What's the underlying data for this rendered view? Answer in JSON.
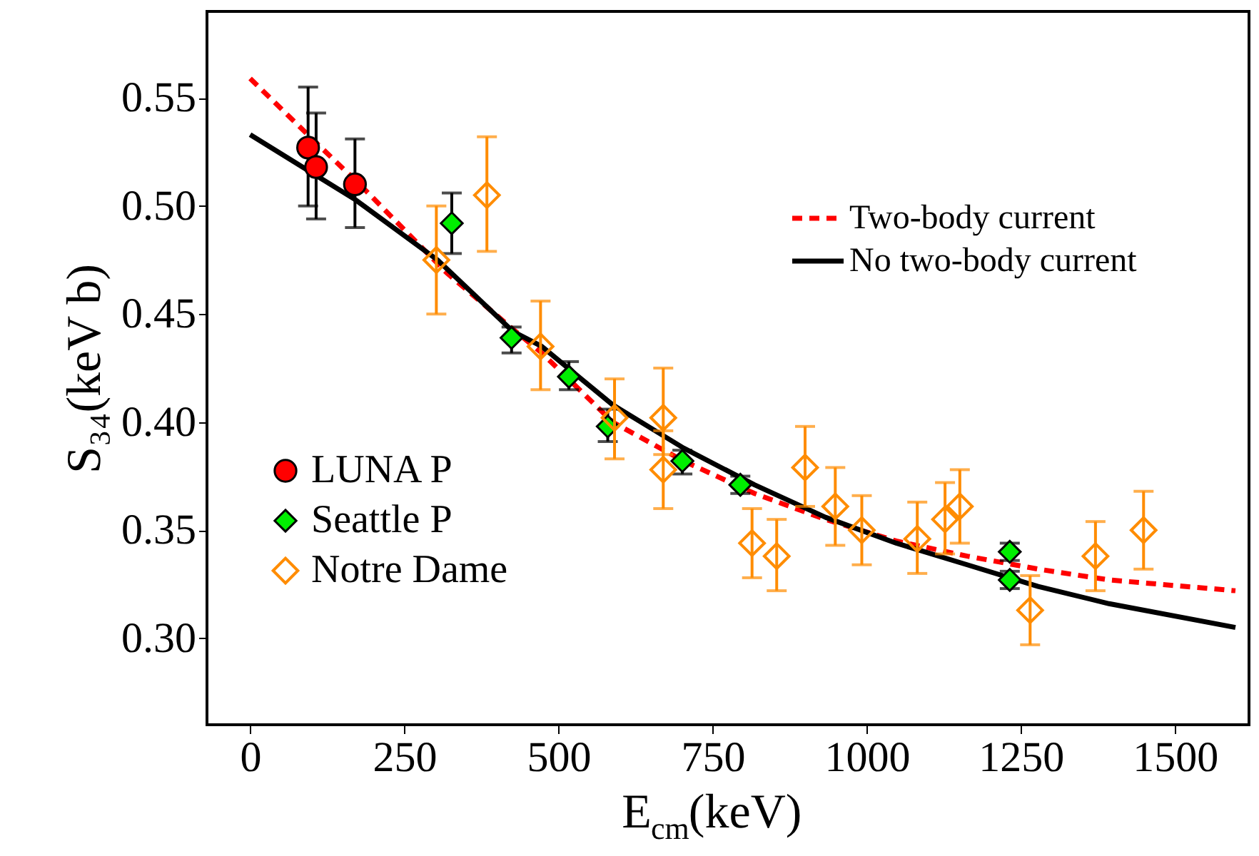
{
  "chart_data": {
    "type": "scatter",
    "xlabel": "E$_{cm}$(keV)",
    "ylabel": "S₃₄(keV b)",
    "xlim": [
      -70,
      1620
    ],
    "ylim": [
      0.26,
      0.59
    ],
    "xticks": [
      0,
      250,
      500,
      750,
      1000,
      1250,
      1500
    ],
    "yticks": [
      {
        "value": 0.3,
        "label": "0.30"
      },
      0.35,
      {
        "value": 0.4,
        "label": "0.40"
      },
      0.45,
      {
        "value": 0.5,
        "label": "0.50"
      },
      0.55
    ],
    "grid": false,
    "legend": "bottom left",
    "series": [
      {
        "name": "Two-body current",
        "type": "line",
        "color": "#ff0000",
        "line_style": "dashed",
        "x": [
          0,
          97,
          181,
          319,
          426,
          473,
          588,
          703,
          818,
          933,
          1048,
          1163,
          1278,
          1393,
          1598
        ],
        "values": [
          0.559,
          0.532,
          0.509,
          0.469,
          0.443,
          0.432,
          0.4,
          0.382,
          0.367,
          0.355,
          0.345,
          0.338,
          0.332,
          0.327,
          0.322
        ]
      },
      {
        "name": "No two-body current",
        "type": "line",
        "color": "#000000",
        "line_style": "solid",
        "x": [
          0,
          170,
          304,
          426,
          473,
          588,
          703,
          818,
          933,
          1048,
          1163,
          1278,
          1393,
          1598
        ],
        "values": [
          0.533,
          0.503,
          0.475,
          0.442,
          0.435,
          0.408,
          0.388,
          0.371,
          0.356,
          0.344,
          0.334,
          0.324,
          0.316,
          0.305
        ]
      },
      {
        "name": "LUNA P",
        "marker": "circle",
        "color": "#ff0000",
        "x": [
          94,
          107,
          170
        ],
        "values": [
          0.527,
          0.518,
          0.51
        ],
        "errors": [
          [
            0.5,
            0.555
          ],
          [
            0.494,
            0.543
          ],
          [
            0.49,
            0.531
          ]
        ]
      },
      {
        "name": "Seattle P",
        "marker": "diamond",
        "color": "#00ee00",
        "x": [
          327,
          424,
          517,
          580,
          701,
          795,
          1232,
          1232
        ],
        "values": [
          0.492,
          0.439,
          0.421,
          0.398,
          0.382,
          0.371,
          0.34,
          0.327
        ],
        "errors": [
          [
            0.478,
            0.506
          ],
          [
            0.432,
            0.444
          ],
          [
            0.415,
            0.428
          ],
          [
            0.391,
            0.406
          ],
          [
            0.376,
            0.387
          ],
          [
            0.367,
            0.375
          ],
          [
            0.336,
            0.344
          ],
          [
            0.323,
            0.331
          ]
        ]
      },
      {
        "name": "Notre Dame",
        "marker": "diamond",
        "color": "#ff8c00",
        "x": [
          302,
          384,
          471,
          591,
          670,
          670,
          814,
          854,
          900,
          949,
          992,
          1082,
          1127,
          1151,
          1265,
          1371,
          1449
        ],
        "values": [
          0.475,
          0.505,
          0.435,
          0.402,
          0.402,
          0.378,
          0.344,
          0.338,
          0.379,
          0.361,
          0.35,
          0.346,
          0.355,
          0.361,
          0.313,
          0.338,
          0.35
        ],
        "errors": [
          [
            0.45,
            0.5
          ],
          [
            0.479,
            0.532
          ],
          [
            0.415,
            0.456
          ],
          [
            0.383,
            0.42
          ],
          [
            0.385,
            0.425
          ],
          [
            0.36,
            0.396
          ],
          [
            0.328,
            0.36
          ],
          [
            0.322,
            0.355
          ],
          [
            0.361,
            0.398
          ],
          [
            0.343,
            0.379
          ],
          [
            0.334,
            0.366
          ],
          [
            0.33,
            0.363
          ],
          [
            0.339,
            0.372
          ],
          [
            0.344,
            0.378
          ],
          [
            0.297,
            0.329
          ],
          [
            0.322,
            0.354
          ],
          [
            0.332,
            0.368
          ]
        ]
      }
    ]
  }
}
